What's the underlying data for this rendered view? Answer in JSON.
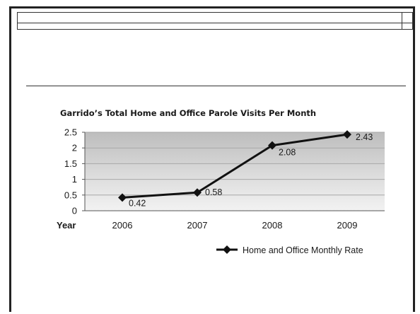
{
  "chart_data": {
    "type": "line",
    "title": "Garrido’s Total Home and Office Parole Visits Per Month",
    "xlabel": "Year",
    "ylabel": "",
    "categories": [
      "2006",
      "2007",
      "2008",
      "2009"
    ],
    "series": [
      {
        "name": "Home and Office Monthly Rate",
        "values": [
          0.42,
          0.58,
          2.08,
          2.43
        ],
        "data_labels": [
          "0.42",
          "0.58",
          "2.08",
          "2.43"
        ],
        "color": "#111111",
        "marker": "diamond"
      }
    ],
    "yticks": [
      "0",
      "0.5",
      "1",
      "1.5",
      "2",
      "2.5"
    ],
    "ylim": [
      0,
      2.5
    ],
    "grid": true,
    "legend": "bottom-right",
    "plot_background": "gradient-gray"
  }
}
